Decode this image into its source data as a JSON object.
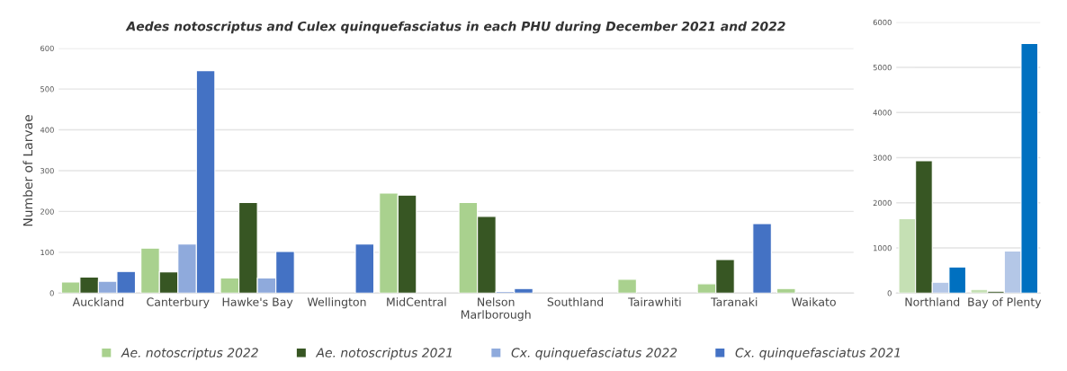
{
  "chart_data": [
    {
      "type": "bar",
      "title": "Aedes notoscriptus and Culex quinquefasciatus in each PHU during December 2021 and 2022",
      "ylabel": "Number of Larvae",
      "categories": [
        "Auckland",
        "Canterbury",
        "Hawke's Bay",
        "Wellington",
        "MidCentral",
        "Nelson\nMarlborough",
        "Southland",
        "Tairawhiti",
        "Taranaki",
        "Waikato"
      ],
      "series": [
        {
          "name": "Ae. notoscriptus 2022",
          "color": "#a9d18e",
          "values": [
            27,
            110,
            37,
            null,
            245,
            222,
            null,
            34,
            23,
            11
          ]
        },
        {
          "name": "Ae. notoscriptus 2021",
          "color": "#375623",
          "values": [
            39,
            52,
            222,
            null,
            240,
            188,
            null,
            null,
            82,
            null
          ]
        },
        {
          "name": "Cx. quinquefasciatus 2022",
          "color": "#8faadc",
          "values": [
            29,
            120,
            37,
            null,
            null,
            4,
            null,
            null,
            null,
            null
          ]
        },
        {
          "name": "Cx. quinquefasciatus 2021",
          "color": "#4472c4",
          "values": [
            53,
            545,
            102,
            120,
            null,
            11,
            null,
            null,
            170,
            null
          ]
        }
      ],
      "ylim": [
        0,
        600
      ],
      "yticks": [
        0,
        100,
        200,
        300,
        400,
        500,
        600
      ],
      "grid": "y",
      "legend": "bottom"
    },
    {
      "type": "bar",
      "categories": [
        "Northland",
        "Bay of Plenty"
      ],
      "series": [
        {
          "color": "#c5e0b4",
          "values": [
            1650,
            80
          ]
        },
        {
          "color": "#375623",
          "values": [
            2930,
            40
          ]
        },
        {
          "color": "#b4c7e7",
          "values": [
            240,
            930
          ]
        },
        {
          "color": "#0070c0",
          "values": [
            580,
            5530
          ]
        }
      ],
      "ylim": [
        0,
        6000
      ],
      "yticks": [
        0,
        1000,
        2000,
        3000,
        4000,
        5000,
        6000
      ],
      "grid": "y"
    }
  ]
}
